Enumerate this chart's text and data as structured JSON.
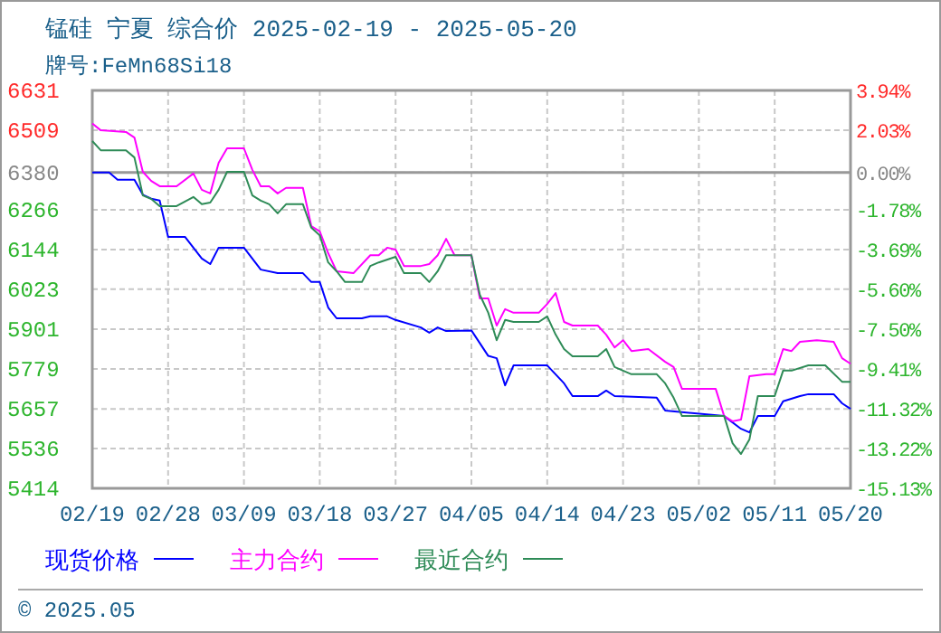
{
  "chart_data": {
    "type": "line",
    "title": "锰硅  宁夏  综合价  2025-02-19 - 2025-05-20",
    "subtitle": "牌号:FeMn68Si18",
    "xlim": [
      "2025-02-19",
      "2025-05-20"
    ],
    "xticks": [
      {
        "value": "2025-02-19",
        "label": "02/19"
      },
      {
        "value": "2025-02-28",
        "label": "02/28"
      },
      {
        "value": "2025-03-09",
        "label": "03/09"
      },
      {
        "value": "2025-03-18",
        "label": "03/18"
      },
      {
        "value": "2025-03-27",
        "label": "03/27"
      },
      {
        "value": "2025-04-05",
        "label": "04/05"
      },
      {
        "value": "2025-04-14",
        "label": "04/14"
      },
      {
        "value": "2025-04-23",
        "label": "04/23"
      },
      {
        "value": "2025-05-02",
        "label": "05/02"
      },
      {
        "value": "2025-05-11",
        "label": "05/11"
      },
      {
        "value": "2025-05-20",
        "label": "05/20"
      }
    ],
    "ylim": [
      5414,
      6631
    ],
    "yticks": [
      5414,
      5536,
      5657,
      5779,
      5901,
      6023,
      6144,
      6266,
      6380,
      6509,
      6631
    ],
    "y2lim": [
      -15.13,
      3.94
    ],
    "y2ticks": [
      {
        "value": -15.13,
        "label": "-15.13%"
      },
      {
        "value": -13.22,
        "label": "-13.22%"
      },
      {
        "value": -11.32,
        "label": "-11.32%"
      },
      {
        "value": -9.41,
        "label": "-9.41%"
      },
      {
        "value": -7.5,
        "label": "-7.50%"
      },
      {
        "value": -5.6,
        "label": "-5.60%"
      },
      {
        "value": -3.69,
        "label": "-3.69%"
      },
      {
        "value": -1.78,
        "label": "-1.78%"
      },
      {
        "value": 0,
        "label": "0.00%"
      },
      {
        "value": 2.03,
        "label": "2.03%"
      },
      {
        "value": 3.94,
        "label": "3.94%"
      }
    ],
    "ref_lines": [
      {
        "axis": "y",
        "value": 6380,
        "color": "#999999"
      }
    ],
    "grid": true,
    "legend": "bottom",
    "line_style": "solid",
    "marker": "none",
    "annotations": [
      "© 2025.05"
    ],
    "series": [
      {
        "name": "现货价格",
        "color": "#0000ff",
        "x": [
          "2025-02-19",
          "2025-02-21",
          "2025-02-22",
          "2025-02-24",
          "2025-02-25",
          "2025-02-26",
          "2025-02-27",
          "2025-02-28",
          "2025-03-02",
          "2025-03-04",
          "2025-03-05",
          "2025-03-06",
          "2025-03-09",
          "2025-03-11",
          "2025-03-13",
          "2025-03-16",
          "2025-03-17",
          "2025-03-18",
          "2025-03-19",
          "2025-03-20",
          "2025-03-23",
          "2025-03-24",
          "2025-03-26",
          "2025-03-27",
          "2025-03-30",
          "2025-03-31",
          "2025-04-01",
          "2025-04-02",
          "2025-04-05",
          "2025-04-07",
          "2025-04-08",
          "2025-04-09",
          "2025-04-10",
          "2025-04-14",
          "2025-04-16",
          "2025-04-17",
          "2025-04-20",
          "2025-04-21",
          "2025-04-22",
          "2025-04-27",
          "2025-04-28",
          "2025-05-05",
          "2025-05-07",
          "2025-05-08",
          "2025-05-09",
          "2025-05-11",
          "2025-05-12",
          "2025-05-14",
          "2025-05-15",
          "2025-05-18",
          "2025-05-19",
          "2025-05-20"
        ],
        "values": [
          6380,
          6380,
          6358,
          6358,
          6312,
          6300,
          6294,
          6183,
          6183,
          6117,
          6100,
          6150,
          6150,
          6083,
          6072,
          6072,
          6045,
          6045,
          5967,
          5934,
          5934,
          5940,
          5940,
          5929,
          5906,
          5890,
          5906,
          5895,
          5897,
          5819,
          5812,
          5729,
          5790,
          5790,
          5735,
          5696,
          5696,
          5713,
          5696,
          5691,
          5652,
          5635,
          5596,
          5585,
          5635,
          5635,
          5680,
          5696,
          5702,
          5702,
          5674,
          5657
        ]
      },
      {
        "name": "主力合约",
        "color": "#ff00ff",
        "x": [
          "2025-02-19",
          "2025-02-20",
          "2025-02-23",
          "2025-02-24",
          "2025-02-25",
          "2025-02-26",
          "2025-02-27",
          "2025-03-01",
          "2025-03-03",
          "2025-03-04",
          "2025-03-05",
          "2025-03-06",
          "2025-03-07",
          "2025-03-09",
          "2025-03-10",
          "2025-03-11",
          "2025-03-12",
          "2025-03-13",
          "2025-03-14",
          "2025-03-16",
          "2025-03-17",
          "2025-03-18",
          "2025-03-19",
          "2025-03-20",
          "2025-03-22",
          "2025-03-24",
          "2025-03-25",
          "2025-03-26",
          "2025-03-27",
          "2025-03-28",
          "2025-03-30",
          "2025-03-31",
          "2025-04-01",
          "2025-04-02",
          "2025-04-03",
          "2025-04-05",
          "2025-04-06",
          "2025-04-07",
          "2025-04-08",
          "2025-04-09",
          "2025-04-10",
          "2025-04-13",
          "2025-04-14",
          "2025-04-15",
          "2025-04-16",
          "2025-04-17",
          "2025-04-20",
          "2025-04-21",
          "2025-04-22",
          "2025-04-23",
          "2025-04-24",
          "2025-04-26",
          "2025-04-28",
          "2025-04-29",
          "2025-04-30",
          "2025-05-04",
          "2025-05-05",
          "2025-05-06",
          "2025-05-07",
          "2025-05-08",
          "2025-05-10",
          "2025-05-11",
          "2025-05-12",
          "2025-05-13",
          "2025-05-14",
          "2025-05-16",
          "2025-05-18",
          "2025-05-19",
          "2025-05-20"
        ],
        "values": [
          6530,
          6509,
          6504,
          6487,
          6382,
          6354,
          6338,
          6338,
          6377,
          6327,
          6316,
          6410,
          6454,
          6454,
          6388,
          6338,
          6338,
          6316,
          6333,
          6333,
          6216,
          6200,
          6133,
          6078,
          6072,
          6127,
          6127,
          6150,
          6144,
          6094,
          6094,
          6100,
          6127,
          6177,
          6127,
          6127,
          5995,
          5995,
          5912,
          5962,
          5951,
          5951,
          5978,
          6011,
          5923,
          5912,
          5912,
          5884,
          5845,
          5867,
          5834,
          5840,
          5801,
          5785,
          5718,
          5718,
          5635,
          5619,
          5624,
          5757,
          5763,
          5763,
          5840,
          5834,
          5862,
          5867,
          5862,
          5812,
          5795
        ]
      },
      {
        "name": "最近合约",
        "color": "#2e8b57",
        "x": [
          "2025-02-19",
          "2025-02-20",
          "2025-02-23",
          "2025-02-24",
          "2025-02-25",
          "2025-02-26",
          "2025-02-27",
          "2025-03-01",
          "2025-03-03",
          "2025-03-04",
          "2025-03-05",
          "2025-03-06",
          "2025-03-07",
          "2025-03-09",
          "2025-03-10",
          "2025-03-11",
          "2025-03-12",
          "2025-03-13",
          "2025-03-14",
          "2025-03-16",
          "2025-03-17",
          "2025-03-18",
          "2025-03-19",
          "2025-03-20",
          "2025-03-21",
          "2025-03-23",
          "2025-03-24",
          "2025-03-25",
          "2025-03-27",
          "2025-03-28",
          "2025-03-30",
          "2025-03-31",
          "2025-04-01",
          "2025-04-02",
          "2025-04-05",
          "2025-04-06",
          "2025-04-07",
          "2025-04-08",
          "2025-04-09",
          "2025-04-10",
          "2025-04-13",
          "2025-04-14",
          "2025-04-15",
          "2025-04-16",
          "2025-04-17",
          "2025-04-20",
          "2025-04-21",
          "2025-04-22",
          "2025-04-24",
          "2025-04-27",
          "2025-04-28",
          "2025-04-29",
          "2025-04-30",
          "2025-05-05",
          "2025-05-06",
          "2025-05-07",
          "2025-05-08",
          "2025-05-09",
          "2025-05-11",
          "2025-05-12",
          "2025-05-13",
          "2025-05-15",
          "2025-05-17",
          "2025-05-19",
          "2025-05-20"
        ],
        "values": [
          6476,
          6448,
          6448,
          6426,
          6310,
          6299,
          6277,
          6277,
          6305,
          6283,
          6288,
          6327,
          6382,
          6382,
          6310,
          6294,
          6283,
          6255,
          6283,
          6283,
          6211,
          6188,
          6105,
          6078,
          6045,
          6045,
          6094,
          6105,
          6122,
          6072,
          6072,
          6045,
          6078,
          6127,
          6127,
          6006,
          5951,
          5867,
          5929,
          5923,
          5923,
          5940,
          5884,
          5840,
          5818,
          5818,
          5840,
          5785,
          5763,
          5763,
          5735,
          5691,
          5635,
          5635,
          5552,
          5519,
          5563,
          5696,
          5696,
          5774,
          5774,
          5790,
          5790,
          5740,
          5740
        ]
      }
    ]
  }
}
